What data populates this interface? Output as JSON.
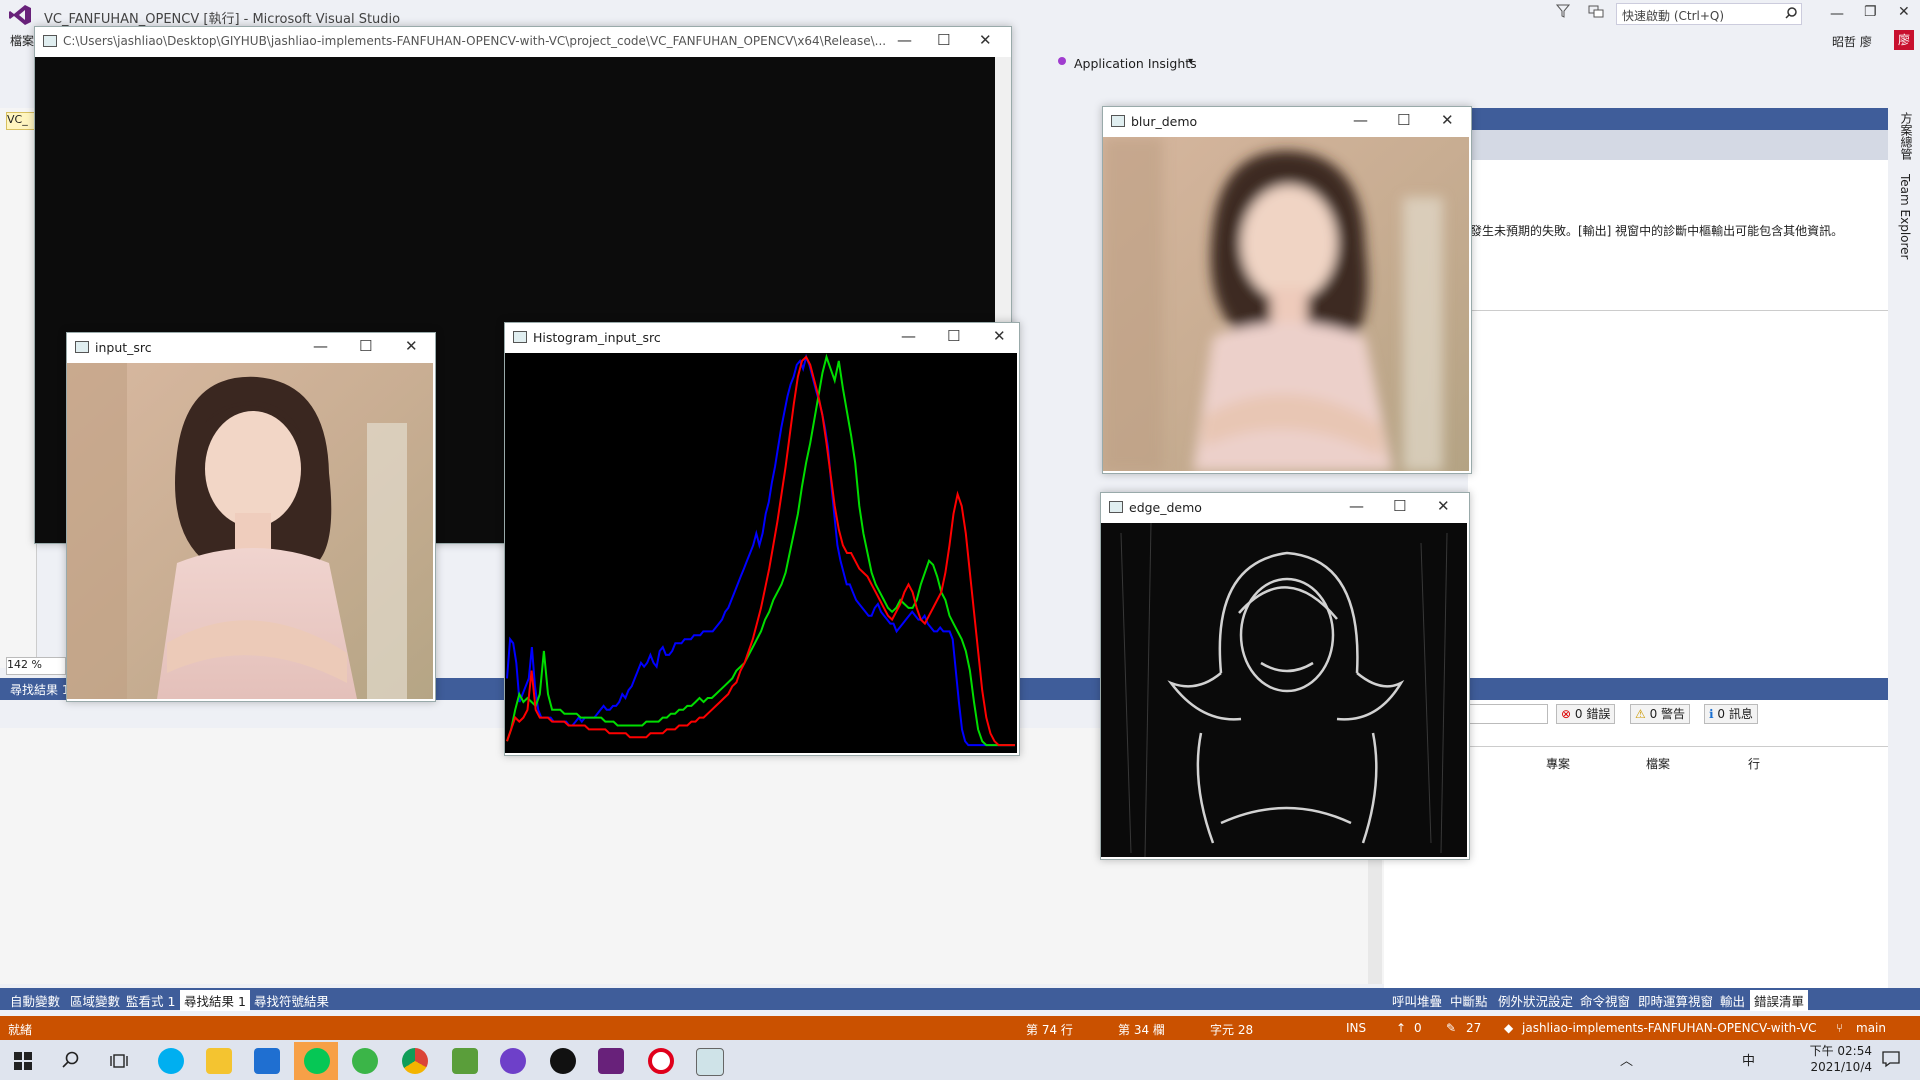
{
  "vs": {
    "title": "VC_FANFUHAN_OPENCV [執行] - Microsoft Visual Studio",
    "quick_launch": "快速啟動 (Ctrl+Q)",
    "user": "昭哲 廖",
    "menu_fragment": "檔案",
    "app_insights": "Application Insights",
    "left_tab": "VC_",
    "zoom": "142 %"
  },
  "console": {
    "title": "C:\\Users\\jashliao\\Desktop\\GIYHUB\\jashliao-implements-FANFUHAN-OPENCV-with-VC\\project_code\\VC_FANFUHAN_OPENCV\\x64\\Release\\..."
  },
  "windows": {
    "input": {
      "title": "input_src"
    },
    "hist": {
      "title": "Histogram_input_src"
    },
    "blur": {
      "title": "blur_demo"
    },
    "edge": {
      "title": "edge_demo"
    }
  },
  "find_panel": {
    "title": "尋找結果 1"
  },
  "right_panel": {
    "message": "發生未預期的失敗。[輸出] 視窗中的診斷中樞輸出可能包含其他資訊。"
  },
  "error_list": {
    "errors": "0 錯誤",
    "warnings": "0 警告",
    "messages": "0 訊息",
    "columns": [
      "專案",
      "檔案",
      "行"
    ]
  },
  "side_tabs": [
    "方案總管",
    "Team Explorer"
  ],
  "bottom_tabs_left": [
    "自動變數",
    "區域變數",
    "監看式 1",
    "尋找結果 1",
    "尋找符號結果"
  ],
  "bottom_tabs_right": [
    "呼叫堆疊",
    "中斷點",
    "例外狀況設定",
    "命令視窗",
    "即時運算視窗",
    "輸出",
    "錯誤清單"
  ],
  "status": {
    "ready": "就緒",
    "line": "第 74 行",
    "col": "第 34 欄",
    "ch": "字元 28",
    "ins": "INS",
    "up": "0",
    "pencil": "27",
    "repo": "jashliao-implements-FANFUHAN-OPENCV-with-VC",
    "branch": "main"
  },
  "clock": {
    "time": "下午 02:54",
    "date": "2021/10/4"
  },
  "tray": {
    "ime": "中"
  },
  "colors": {
    "accent": "#3f5d9a",
    "status": "#ca5100"
  },
  "histogram": {
    "bins": 256,
    "series": [
      {
        "color": "#0000ff",
        "values": [
          0.18,
          0.28,
          0.27,
          0.22,
          0.12,
          0.14,
          0.16,
          0.18,
          0.26,
          0.16,
          0.1,
          0.08,
          0.08,
          0.08,
          0.08,
          0.07,
          0.07,
          0.07,
          0.07,
          0.07,
          0.06,
          0.06,
          0.07,
          0.08,
          0.07,
          0.08,
          0.08,
          0.08,
          0.08,
          0.09,
          0.1,
          0.11,
          0.1,
          0.1,
          0.11,
          0.11,
          0.12,
          0.14,
          0.13,
          0.15,
          0.16,
          0.18,
          0.2,
          0.22,
          0.21,
          0.22,
          0.24,
          0.22,
          0.21,
          0.25,
          0.26,
          0.24,
          0.24,
          0.25,
          0.27,
          0.27,
          0.27,
          0.28,
          0.28,
          0.28,
          0.29,
          0.29,
          0.29,
          0.3,
          0.3,
          0.3,
          0.3,
          0.31,
          0.32,
          0.33,
          0.35,
          0.36,
          0.38,
          0.4,
          0.42,
          0.44,
          0.46,
          0.48,
          0.5,
          0.52,
          0.55,
          0.52,
          0.55,
          0.6,
          0.63,
          0.68,
          0.72,
          0.77,
          0.82,
          0.86,
          0.9,
          0.93,
          0.95,
          0.98,
          0.99,
          0.97,
          1.0,
          0.98,
          0.95,
          0.92,
          0.89,
          0.86,
          0.82,
          0.77,
          0.68,
          0.6,
          0.52,
          0.48,
          0.45,
          0.42,
          0.42,
          0.4,
          0.38,
          0.37,
          0.36,
          0.35,
          0.34,
          0.34,
          0.36,
          0.37,
          0.35,
          0.34,
          0.33,
          0.32,
          0.32,
          0.3,
          0.31,
          0.32,
          0.33,
          0.34,
          0.35,
          0.34,
          0.33,
          0.33,
          0.34,
          0.32,
          0.31,
          0.3,
          0.3,
          0.31,
          0.3,
          0.3,
          0.3,
          0.28,
          0.2,
          0.12,
          0.05,
          0.02,
          0.01,
          0.01,
          0.01,
          0.01,
          0.01,
          0.01,
          0.01,
          0.01,
          0.01,
          0.01,
          0.01,
          0.01,
          0.01,
          0.01,
          0.01,
          0.01
        ]
      },
      {
        "color": "#00dd00",
        "values": [
          0.02,
          0.05,
          0.1,
          0.14,
          0.12,
          0.13,
          0.12,
          0.11,
          0.14,
          0.25,
          0.14,
          0.1,
          0.1,
          0.1,
          0.09,
          0.09,
          0.09,
          0.09,
          0.08,
          0.08,
          0.08,
          0.08,
          0.08,
          0.08,
          0.07,
          0.07,
          0.07,
          0.06,
          0.06,
          0.06,
          0.06,
          0.06,
          0.06,
          0.06,
          0.07,
          0.07,
          0.07,
          0.07,
          0.08,
          0.08,
          0.09,
          0.09,
          0.1,
          0.1,
          0.11,
          0.11,
          0.12,
          0.13,
          0.12,
          0.13,
          0.13,
          0.14,
          0.15,
          0.16,
          0.17,
          0.18,
          0.2,
          0.21,
          0.22,
          0.24,
          0.26,
          0.28,
          0.3,
          0.33,
          0.35,
          0.38,
          0.4,
          0.42,
          0.45,
          0.5,
          0.55,
          0.6,
          0.67,
          0.73,
          0.78,
          0.84,
          0.9,
          0.96,
          1.0,
          0.97,
          0.94,
          0.99,
          0.92,
          0.86,
          0.8,
          0.73,
          0.62,
          0.55,
          0.5,
          0.45,
          0.42,
          0.4,
          0.38,
          0.36,
          0.35,
          0.36,
          0.38,
          0.37,
          0.36,
          0.36,
          0.38,
          0.42,
          0.45,
          0.48,
          0.47,
          0.44,
          0.4,
          0.38,
          0.34,
          0.32,
          0.3,
          0.28,
          0.25,
          0.2,
          0.12,
          0.05,
          0.02,
          0.01,
          0.01,
          0.01,
          0.01,
          0.01,
          0.01,
          0.01,
          0.01
        ]
      },
      {
        "color": "#ff0000",
        "values": [
          0.02,
          0.05,
          0.08,
          0.07,
          0.08,
          0.1,
          0.2,
          0.1,
          0.08,
          0.08,
          0.08,
          0.07,
          0.07,
          0.07,
          0.07,
          0.06,
          0.06,
          0.06,
          0.06,
          0.06,
          0.05,
          0.05,
          0.05,
          0.05,
          0.05,
          0.04,
          0.04,
          0.04,
          0.04,
          0.04,
          0.03,
          0.03,
          0.03,
          0.03,
          0.03,
          0.04,
          0.04,
          0.04,
          0.04,
          0.05,
          0.05,
          0.05,
          0.06,
          0.06,
          0.06,
          0.07,
          0.07,
          0.08,
          0.08,
          0.09,
          0.1,
          0.11,
          0.12,
          0.13,
          0.14,
          0.16,
          0.17,
          0.2,
          0.22,
          0.25,
          0.28,
          0.32,
          0.36,
          0.41,
          0.46,
          0.52,
          0.58,
          0.65,
          0.72,
          0.8,
          0.88,
          0.95,
          0.99,
          1.0,
          0.98,
          0.94,
          0.9,
          0.85,
          0.78,
          0.7,
          0.62,
          0.56,
          0.52,
          0.5,
          0.5,
          0.48,
          0.46,
          0.45,
          0.44,
          0.42,
          0.4,
          0.38,
          0.36,
          0.34,
          0.33,
          0.35,
          0.37,
          0.4,
          0.42,
          0.4,
          0.36,
          0.33,
          0.32,
          0.34,
          0.36,
          0.38,
          0.4,
          0.45,
          0.52,
          0.6,
          0.65,
          0.62,
          0.55,
          0.45,
          0.35,
          0.25,
          0.15,
          0.08,
          0.04,
          0.02,
          0.01,
          0.01,
          0.01,
          0.01,
          0.01
        ]
      }
    ]
  }
}
